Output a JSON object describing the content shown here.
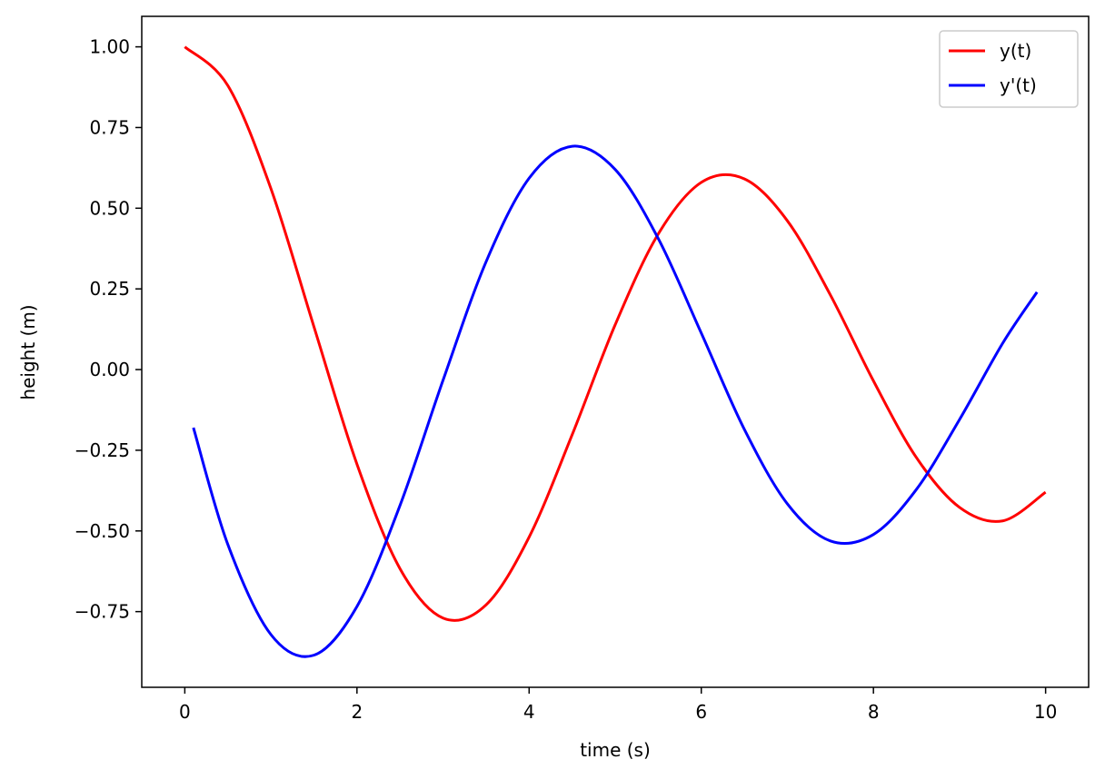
{
  "chart_data": {
    "type": "line",
    "xlabel": "time (s)",
    "ylabel": "height (m)",
    "xlim": [
      -0.5,
      10.5
    ],
    "ylim": [
      -0.9845,
      1.0945
    ],
    "xticks": [
      0,
      2,
      4,
      6,
      8,
      10
    ],
    "yticks": [
      {
        "value": -0.75,
        "label": "−0.75"
      },
      {
        "value": -0.5,
        "label": "−0.50"
      },
      {
        "value": -0.25,
        "label": "−0.25"
      },
      {
        "value": 0,
        "label": "0.00"
      },
      0.25,
      {
        "value": 0.5,
        "label": "0.50"
      },
      0.75,
      {
        "value": 1,
        "label": "1.00"
      }
    ],
    "grid": false,
    "legend": "upper right",
    "series": [
      {
        "name": "y(t)",
        "color": "#ff0000",
        "x": [
          0,
          0.5,
          1,
          1.5,
          2,
          2.5,
          3,
          3.5,
          4,
          4.5,
          5,
          5.5,
          6,
          6.5,
          7,
          7.5,
          8,
          8.5,
          9,
          9.5,
          10
        ],
        "values": [
          1,
          0.88,
          0.561,
          0.133,
          -0.293,
          -0.617,
          -0.77,
          -0.729,
          -0.519,
          -0.202,
          0.139,
          0.42,
          0.58,
          0.591,
          0.461,
          0.231,
          -0.035,
          -0.273,
          -0.427,
          -0.469,
          -0.38
        ]
      },
      {
        "name": "y'(t)",
        "color": "#0000ff",
        "x": [
          0.1,
          0.5,
          1,
          1.5,
          2,
          2.5,
          3,
          3.5,
          4,
          4.5,
          5,
          5.5,
          6,
          6.5,
          7,
          7.5,
          8,
          8.5,
          9,
          9.5,
          9.9
        ],
        "values": [
          -0.18,
          -0.542,
          -0.821,
          -0.885,
          -0.734,
          -0.421,
          -0.033,
          0.334,
          0.593,
          0.692,
          0.62,
          0.406,
          0.113,
          -0.185,
          -0.416,
          -0.531,
          -0.511,
          -0.371,
          -0.155,
          0.081,
          0.24
        ]
      }
    ]
  }
}
